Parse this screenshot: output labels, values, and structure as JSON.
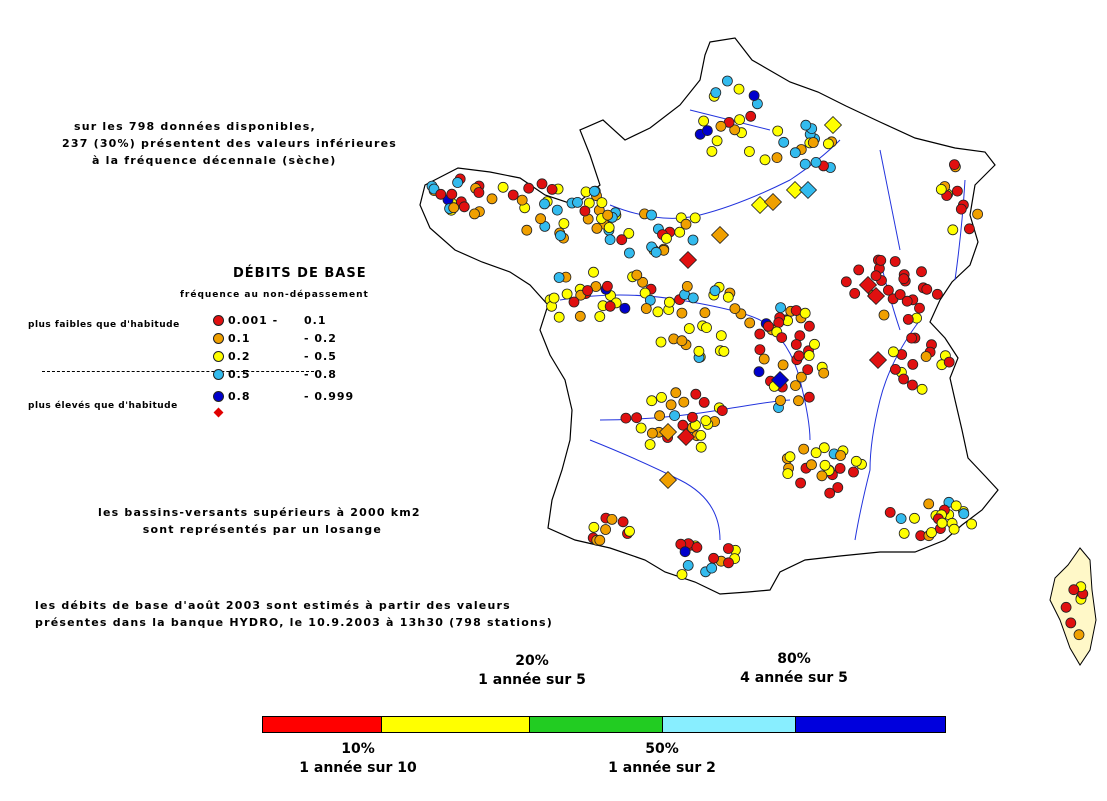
{
  "summary": {
    "line1": "sur les 798 données disponibles,",
    "line2": "237 (30%) présentent des valeurs inférieures",
    "line3": "à la fréquence décennale (sèche)"
  },
  "legend": {
    "title": "DÉBITS DE BASE",
    "subtitle": "fréquence au non-dépassement",
    "low_label": "plus faibles que d'habitude",
    "high_label": "plus élevés que d'habitude",
    "classes": [
      {
        "lo": "0.001   -",
        "hi": "0.1",
        "color": "#e01010"
      },
      {
        "lo": "0.1",
        "hi": "- 0.2",
        "color": "#f0a000"
      },
      {
        "lo": "0.2",
        "hi": "- 0.5",
        "color": "#ffff00"
      },
      {
        "lo": "0.5",
        "hi": "- 0.8",
        "color": "#33bbee"
      },
      {
        "lo": "0.8",
        "hi": "- 0.999",
        "color": "#0000cc"
      }
    ]
  },
  "notes": {
    "bassins_line1": "les bassins-versants supérieurs à 2000 km2",
    "bassins_line2": "sont représentés par un losange",
    "source_line1": "les débits de base d'août 2003 sont estimés à partir des  valeurs",
    "source_line2": "présentes dans la banque HYDRO, le 10.9.2003 à 13h30 (798 stations)"
  },
  "scale": {
    "label_20_pct": "20%",
    "label_20_text": "1 année sur 5",
    "label_80_pct": "80%",
    "label_80_text": "4 année sur 5",
    "label_10_pct": "10%",
    "label_10_text": "1 année sur 10",
    "label_50_pct": "50%",
    "label_50_text": "1 année sur 2",
    "segments": [
      {
        "color": "#ff0000"
      },
      {
        "color": "#ffff00"
      },
      {
        "color": "#22cc22"
      },
      {
        "color": "#88eeff"
      },
      {
        "color": "#0000dd"
      }
    ]
  },
  "map_colors": {
    "red": "#e01010",
    "orange": "#f0a000",
    "yellow": "#ffff00",
    "cyan": "#33bbee",
    "blue": "#0000cc",
    "river": "#2233dd",
    "corsica_fill": "#fff8c8"
  }
}
